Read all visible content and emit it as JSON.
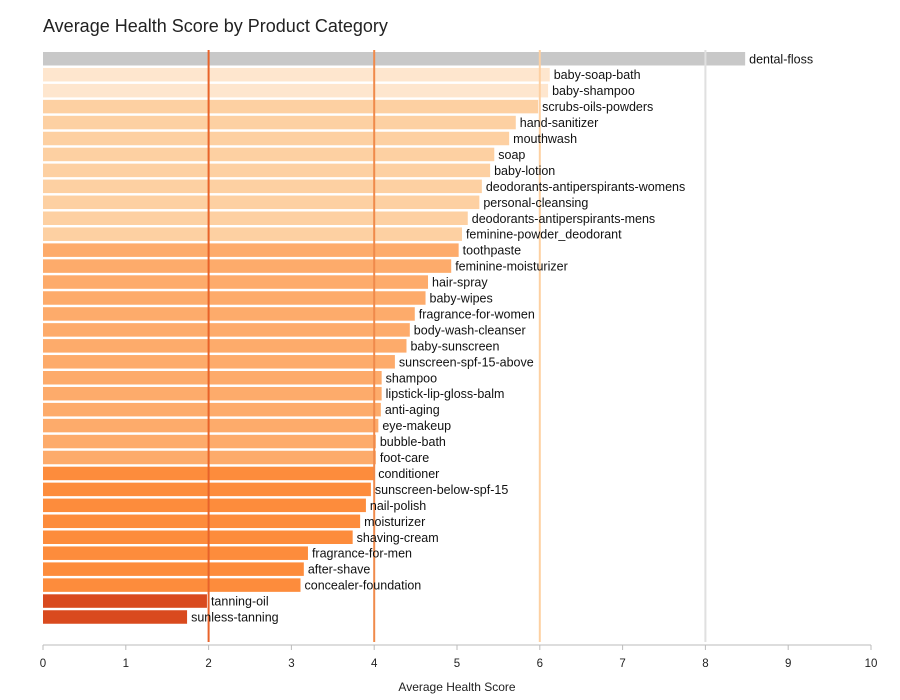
{
  "chart_data": {
    "type": "bar",
    "orientation": "horizontal",
    "title": "Average Health Score by Product Category",
    "xlabel": "Average Health Score",
    "ylabel": "",
    "xlim": [
      0,
      10
    ],
    "xticks": [
      "0",
      "1",
      "2",
      "3",
      "4",
      "5",
      "6",
      "7",
      "8",
      "9",
      "10"
    ],
    "reference_lines": [
      {
        "value": 2,
        "color": "#e8632a"
      },
      {
        "value": 4,
        "color": "#f08a4b"
      },
      {
        "value": 6,
        "color": "#fdd0a2"
      },
      {
        "value": 8,
        "color": "#e0e0e0"
      }
    ],
    "categories": [
      "dental-floss",
      "baby-soap-bath",
      "baby-shampoo",
      "scrubs-oils-powders",
      "hand-sanitizer",
      "mouthwash",
      "soap",
      "baby-lotion",
      "deodorants-antiperspirants-womens",
      "personal-cleansing",
      "deodorants-antiperspirants-mens",
      "feminine-powder_deodorant",
      "toothpaste",
      "feminine-moisturizer",
      "hair-spray",
      "baby-wipes",
      "fragrance-for-women",
      "body-wash-cleanser",
      "baby-sunscreen",
      "sunscreen-spf-15-above",
      "shampoo",
      "lipstick-lip-gloss-balm",
      "anti-aging",
      "eye-makeup",
      "bubble-bath",
      "foot-care",
      "conditioner",
      "sunscreen-below-spf-15",
      "nail-polish",
      "moisturizer",
      "shaving-cream",
      "fragrance-for-men",
      "after-shave",
      "concealer-foundation",
      "tanning-oil",
      "sunless-tanning"
    ],
    "values": [
      8.48,
      6.12,
      6.1,
      5.98,
      5.71,
      5.63,
      5.45,
      5.4,
      5.3,
      5.27,
      5.13,
      5.06,
      5.02,
      4.93,
      4.65,
      4.62,
      4.49,
      4.43,
      4.39,
      4.25,
      4.09,
      4.09,
      4.08,
      4.05,
      4.02,
      4.02,
      4.0,
      3.96,
      3.9,
      3.83,
      3.74,
      3.2,
      3.15,
      3.11,
      1.98,
      1.74
    ],
    "colors": [
      "#c8c8c8",
      "#fee6ce",
      "#fee6ce",
      "#fdd0a2",
      "#fdd0a2",
      "#fdd0a2",
      "#fdd0a2",
      "#fdd0a2",
      "#fdd0a2",
      "#fdd0a2",
      "#fdd0a2",
      "#fdd0a2",
      "#fdab6b",
      "#fdab6b",
      "#fdab6b",
      "#fdab6b",
      "#fdab6b",
      "#fdab6b",
      "#fdab6b",
      "#fdab6b",
      "#fdab6b",
      "#fdab6b",
      "#fdab6b",
      "#fdab6b",
      "#fdab6b",
      "#fdab6b",
      "#fd8c3c",
      "#fd8c3c",
      "#fd8c3c",
      "#fd8c3c",
      "#fd8c3c",
      "#fd8c3c",
      "#fd8c3c",
      "#fd8c3c",
      "#d94a1e",
      "#d94a1e"
    ],
    "grid": false,
    "legend": "none"
  }
}
